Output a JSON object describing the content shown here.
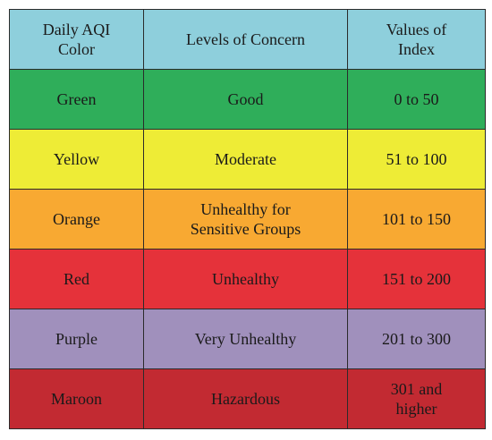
{
  "header": {
    "color": "Daily AQI\nColor",
    "concern": "Levels of Concern",
    "values": "Values of\nIndex",
    "bg": "#8ecfdc"
  },
  "rows": [
    {
      "color": "Green",
      "concern": "Good",
      "values": "0 to 50",
      "bg": "#2fae5a"
    },
    {
      "color": "Yellow",
      "concern": "Moderate",
      "values": "51 to 100",
      "bg": "#eeec36"
    },
    {
      "color": "Orange",
      "concern": "Unhealthy for\nSensitive Groups",
      "values": "101 to 150",
      "bg": "#f8a932"
    },
    {
      "color": "Red",
      "concern": "Unhealthy",
      "values": "151 to 200",
      "bg": "#e5323a"
    },
    {
      "color": "Purple",
      "concern": "Very Unhealthy",
      "values": "201 to 300",
      "bg": "#a090bc"
    },
    {
      "color": "Maroon",
      "concern": "Hazardous",
      "values": "301 and\nhigher",
      "bg": "#c22a32"
    }
  ]
}
